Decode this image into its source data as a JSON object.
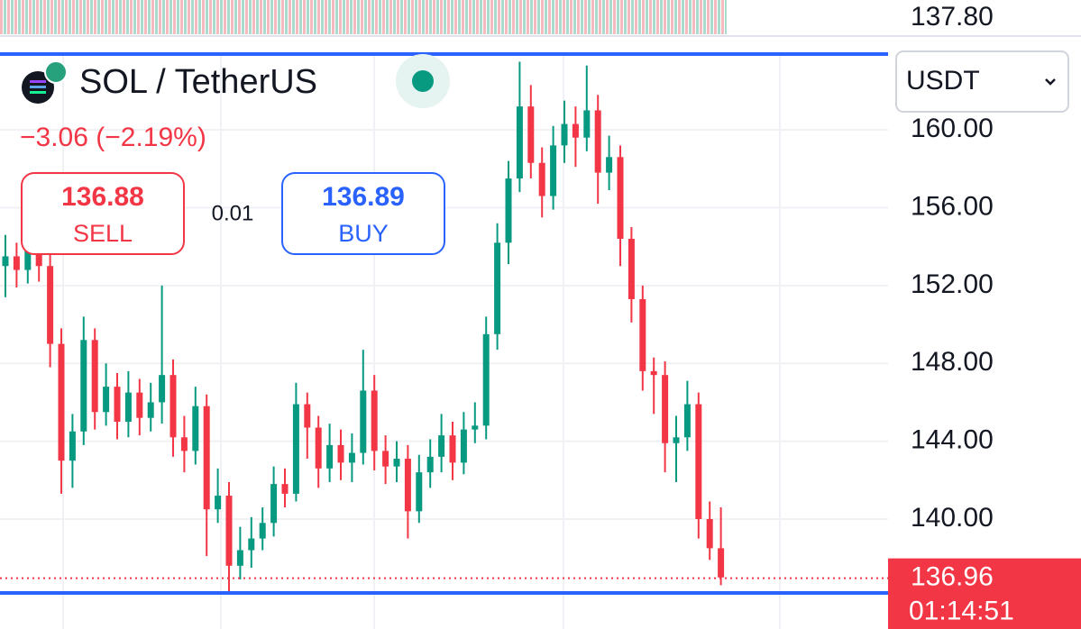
{
  "header": {
    "symbol": "SOL / TetherUS",
    "change": "−3.06 (−2.19%)",
    "sell_price": 136.88,
    "sell_label": "SELL",
    "spread": 0.01,
    "buy_price": 136.89,
    "buy_label": "BUY",
    "currency": "USDT",
    "upper_panel_price": "137.80"
  },
  "chart_data": {
    "type": "candlestick",
    "open": [
      153.0,
      153.5,
      152.8,
      154.2,
      153.0,
      149.0,
      143.0,
      144.5,
      149.2,
      145.5,
      146.8,
      145.0,
      146.5,
      145.2,
      146.0,
      147.4,
      144.2,
      143.5,
      145.8,
      140.5,
      141.2,
      137.6,
      138.4,
      139.0,
      139.8,
      141.8,
      141.3,
      145.9,
      144.7,
      142.6,
      143.8,
      142.9,
      143.4,
      146.6,
      143.5,
      142.7,
      143.1,
      140.4,
      142.4,
      143.2,
      144.3,
      142.9,
      144.6,
      144.8,
      149.5,
      154.2,
      157.5,
      161.2,
      158.3,
      156.6,
      159.2,
      160.3,
      159.6,
      161.0,
      157.8,
      158.6,
      154.4,
      151.3,
      147.6,
      147.4,
      143.9,
      144.2,
      145.9,
      140.0,
      138.5
    ],
    "high": [
      154.6,
      154.2,
      155.4,
      155.0,
      153.6,
      149.8,
      145.4,
      150.4,
      149.8,
      148.0,
      147.5,
      147.6,
      147.2,
      147.0,
      152.0,
      148.2,
      145.3,
      146.8,
      146.4,
      142.6,
      141.9,
      139.6,
      140.1,
      140.6,
      142.7,
      142.6,
      147.0,
      146.5,
      145.3,
      144.9,
      144.6,
      144.4,
      148.7,
      147.4,
      144.3,
      144.0,
      143.8,
      143.3,
      144.1,
      145.4,
      145.0,
      145.5,
      146.0,
      150.4,
      155.2,
      158.4,
      163.5,
      162.3,
      159.1,
      160.2,
      161.5,
      161.2,
      163.3,
      161.8,
      159.7,
      159.2,
      155.0,
      152.0,
      148.3,
      148.1,
      145.3,
      147.1,
      146.5,
      140.9,
      140.6
    ],
    "low": [
      151.4,
      151.9,
      152.1,
      152.2,
      147.8,
      141.3,
      141.6,
      143.8,
      144.6,
      144.8,
      144.1,
      144.2,
      144.3,
      144.5,
      144.9,
      143.2,
      142.4,
      142.8,
      138.1,
      139.8,
      136.2,
      136.9,
      137.5,
      138.4,
      139.1,
      140.6,
      140.9,
      143.1,
      141.6,
      141.9,
      142.0,
      141.9,
      142.8,
      142.5,
      141.8,
      141.9,
      139.0,
      139.8,
      141.6,
      142.4,
      142.0,
      142.3,
      143.9,
      144.1,
      148.7,
      153.1,
      156.8,
      157.5,
      155.5,
      155.9,
      158.3,
      158.1,
      158.9,
      156.2,
      156.9,
      153.0,
      150.1,
      146.6,
      145.4,
      142.4,
      141.9,
      143.5,
      139.0,
      137.9,
      136.6
    ],
    "close": [
      153.5,
      152.8,
      154.2,
      153.0,
      149.0,
      143.0,
      144.5,
      149.2,
      145.5,
      146.8,
      145.0,
      146.5,
      145.2,
      146.0,
      147.4,
      144.2,
      143.5,
      145.8,
      140.5,
      141.2,
      137.6,
      138.4,
      139.0,
      139.8,
      141.8,
      141.3,
      145.9,
      144.7,
      142.6,
      143.8,
      142.9,
      143.4,
      146.6,
      143.5,
      142.7,
      143.1,
      140.4,
      142.4,
      143.2,
      144.3,
      142.9,
      144.6,
      144.8,
      149.5,
      154.2,
      157.5,
      161.2,
      158.3,
      156.6,
      159.2,
      160.3,
      159.6,
      161.0,
      157.8,
      158.6,
      154.4,
      151.3,
      147.6,
      147.4,
      143.9,
      144.2,
      145.9,
      140.0,
      138.5,
      137.0
    ],
    "up_color": "#089981",
    "down_color": "#f23645",
    "ylim": [
      134.35,
      163.8
    ],
    "yticks": [
      {
        "value": 140,
        "label": "140.00"
      },
      {
        "value": 144,
        "label": "144.00"
      },
      {
        "value": 148,
        "label": "148.00"
      },
      {
        "value": 152,
        "label": "152.00"
      },
      {
        "value": 156,
        "label": "156.00"
      },
      {
        "value": 160,
        "label": "160.00"
      }
    ],
    "grid": true,
    "current_price": 136.96,
    "countdown": "01:14:51"
  }
}
